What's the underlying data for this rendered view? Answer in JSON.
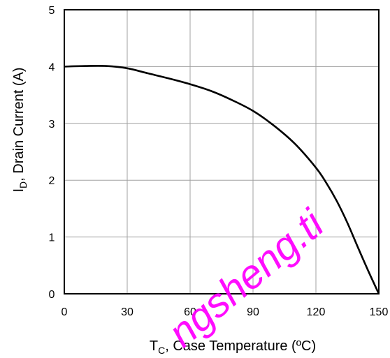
{
  "chart_data": {
    "type": "line",
    "xlabel": "T_C, Case Temperature (ºC)",
    "xlabel_parts": {
      "main": "T",
      "sub": "C",
      "rest": ", Case Temperature (ºC)"
    },
    "ylabel": "I_D, Drain Current (A)",
    "ylabel_parts": {
      "main": "I",
      "sub": "D",
      "rest": ", Drain Current (A)"
    },
    "xlim": [
      0,
      150
    ],
    "ylim": [
      0,
      5
    ],
    "xticks": [
      0,
      30,
      60,
      90,
      120,
      150
    ],
    "yticks": [
      0,
      1,
      2,
      3,
      4,
      5
    ],
    "grid": true,
    "series": [
      {
        "x": [
          0,
          10,
          20,
          30,
          40,
          50,
          60,
          70,
          80,
          90,
          100,
          110,
          120,
          125,
          130,
          135,
          140,
          145,
          150
        ],
        "y": [
          4.0,
          4.01,
          4.01,
          3.97,
          3.88,
          3.79,
          3.69,
          3.57,
          3.41,
          3.22,
          2.96,
          2.64,
          2.22,
          1.95,
          1.63,
          1.25,
          0.82,
          0.4,
          0.0
        ]
      }
    ],
    "line_color": "#000000"
  },
  "watermark": {
    "text": "ngsheng.ti",
    "color": "#ff00ff"
  }
}
